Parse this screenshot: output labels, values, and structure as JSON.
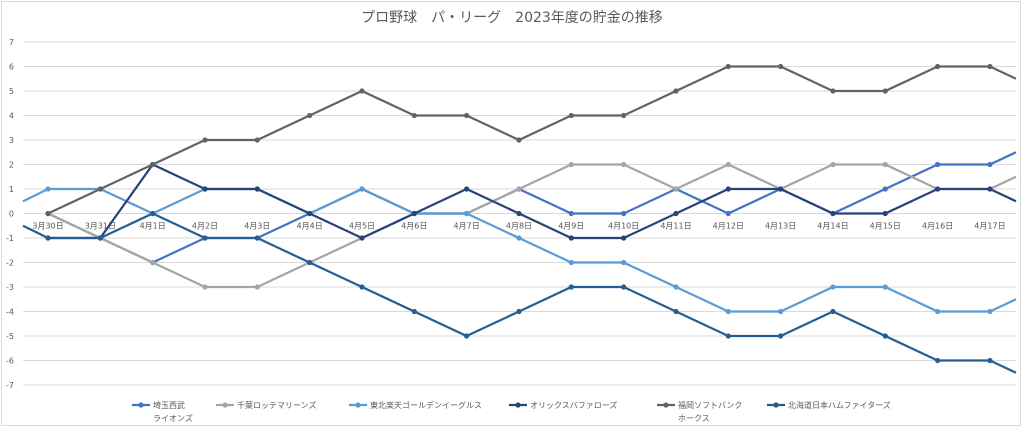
{
  "chart_data": {
    "type": "line",
    "title": "プロ野球　パ・リーグ　2023年度の貯金の推移",
    "xlabel": "",
    "ylabel": "",
    "ylim": [
      -7,
      7
    ],
    "yticks": [
      7,
      6,
      5,
      4,
      3,
      2,
      1,
      0,
      -1,
      -2,
      -3,
      -4,
      -5,
      -6,
      -7
    ],
    "grid": true,
    "legend_position": "bottom",
    "categories": [
      "3月30日",
      "3月31日",
      "4月1日",
      "4月2日",
      "4月3日",
      "4月4日",
      "4月5日",
      "4月6日",
      "4月7日",
      "4月8日",
      "4月9日",
      "4月10日",
      "4月11日",
      "4月12日",
      "4月13日",
      "4月14日",
      "4月15日",
      "4月16日",
      "4月17日"
    ],
    "series": [
      {
        "name": "埼玉西武\nライオンズ",
        "color": "#4472c4",
        "values": [
          0,
          -1,
          -2,
          -1,
          -1,
          0,
          1,
          0,
          0,
          1,
          0,
          0,
          1,
          0,
          1,
          0,
          1,
          2,
          2
        ],
        "end_value": 2.5
      },
      {
        "name": "千葉ロッテマリーンズ",
        "color": "#a5a5a5",
        "values": [
          0,
          -1,
          -2,
          -3,
          -3,
          -2,
          -1,
          0,
          0,
          1,
          2,
          2,
          1,
          2,
          1,
          2,
          2,
          1,
          1
        ],
        "end_value": 1.5
      },
      {
        "name": "東北楽天ゴールデンイーグルス",
        "color": "#5b9bd5",
        "start_value": 0.5,
        "values": [
          1,
          1,
          0,
          1,
          1,
          0,
          1,
          0,
          0,
          -1,
          -2,
          -2,
          -3,
          -4,
          -4,
          -3,
          -3,
          -4,
          -4
        ],
        "end_value": -3.5
      },
      {
        "name": "オリックスバファローズ",
        "color": "#264478",
        "values": [
          -1,
          -1,
          2,
          1,
          1,
          0,
          -1,
          0,
          1,
          0,
          -1,
          -1,
          0,
          1,
          1,
          0,
          0,
          1,
          1
        ],
        "end_value": 0.5
      },
      {
        "name": "福岡ソフトバンク\nホークス",
        "color": "#636363",
        "values": [
          0,
          1,
          2,
          3,
          3,
          4,
          5,
          4,
          4,
          3,
          4,
          4,
          5,
          6,
          6,
          5,
          5,
          6,
          6
        ],
        "end_value": 5.5
      },
      {
        "name": "北海道日本ハムファイターズ",
        "color": "#255e91",
        "start_value": -0.5,
        "values": [
          -1,
          -1,
          0,
          -1,
          -1,
          -2,
          -3,
          -4,
          -5,
          -4,
          -3,
          -3,
          -4,
          -5,
          -5,
          -4,
          -5,
          -6,
          -6
        ],
        "end_value": -6.5
      }
    ]
  }
}
